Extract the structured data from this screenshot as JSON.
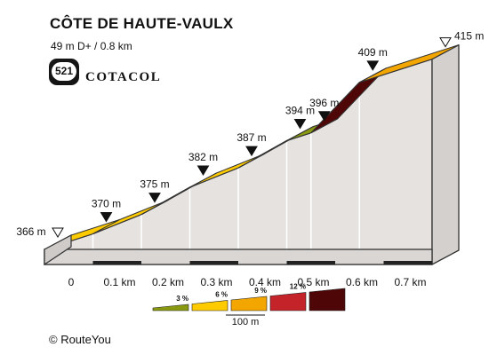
{
  "header": {
    "title": "CÔTE DE HAUTE-VAULX",
    "stats": "49 m D+ / 0.8 km",
    "badge_number": "521",
    "brand": "COTACOL"
  },
  "footer": {
    "copyright": "© RouteYou"
  },
  "chart_data": {
    "type": "area",
    "x_unit": "km",
    "points": [
      {
        "km": 0.0,
        "alt": 366,
        "label": "366 m",
        "marker": "start"
      },
      {
        "km": 0.1,
        "alt": 370,
        "label": "370 m",
        "marker": "point"
      },
      {
        "km": 0.2,
        "alt": 375,
        "label": "375 m",
        "marker": "point"
      },
      {
        "km": 0.3,
        "alt": 382,
        "label": "382 m",
        "marker": "point"
      },
      {
        "km": 0.4,
        "alt": 387,
        "label": "387 m",
        "marker": "point"
      },
      {
        "km": 0.5,
        "alt": 394,
        "label": "394 m",
        "marker": "point"
      },
      {
        "km": 0.55,
        "alt": 396,
        "label": "396 m",
        "marker": "point"
      },
      {
        "km": 0.65,
        "alt": 409,
        "label": "409 m",
        "marker": "point"
      },
      {
        "km": 0.8,
        "alt": 415,
        "label": "415 m",
        "marker": "end"
      }
    ],
    "segment_colors": [
      "#fecb00",
      "#fecb00",
      "#f4a600",
      "#fecb00",
      "#f4a600",
      "#8a9a10",
      "#4e0606",
      "#f4a600"
    ],
    "x_ticks": [
      "0",
      "0.1 km",
      "0.2 km",
      "0.3 km",
      "0.4 km",
      "0.5 km",
      "0.6 km",
      "0.7 km"
    ],
    "legend": {
      "items": [
        {
          "label": "3 %",
          "color": "#8a9a10"
        },
        {
          "label": "6 %",
          "color": "#fecb00"
        },
        {
          "label": "9 %",
          "color": "#f4a600"
        },
        {
          "label": "12 %",
          "color": "#c4232a"
        },
        {
          "label": "",
          "color": "#4e0606"
        }
      ],
      "scale_label": "100 m"
    }
  }
}
